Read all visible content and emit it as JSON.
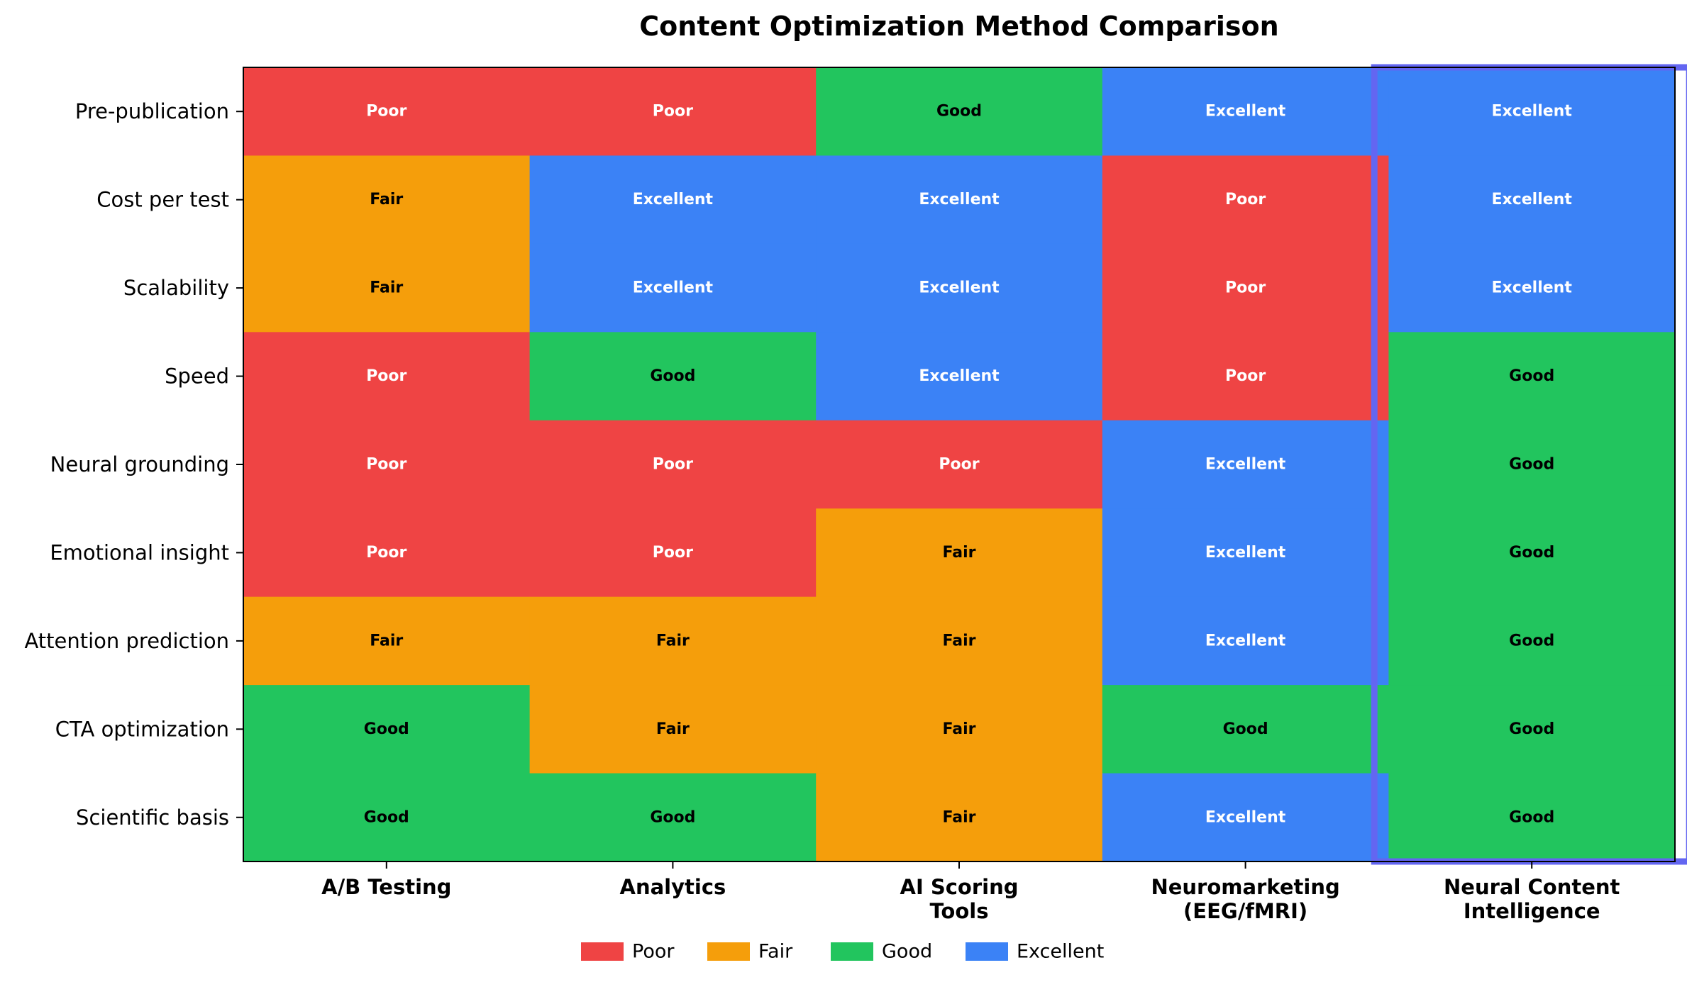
{
  "chart_data": {
    "type": "heatmap",
    "title": "Content Optimization Method Comparison",
    "xlabel": "",
    "ylabel": "",
    "columns": [
      [
        "A/B Testing"
      ],
      [
        "Analytics"
      ],
      [
        "AI Scoring",
        "Tools"
      ],
      [
        "Neuromarketing",
        "(EEG/fMRI)"
      ],
      [
        "Neural Content",
        "Intelligence"
      ]
    ],
    "rows": [
      "Pre-publication",
      "Cost per test",
      "Scalability",
      "Speed",
      "Neural grounding",
      "Emotional insight",
      "Attention prediction",
      "CTA optimization",
      "Scientific basis"
    ],
    "ratings": [
      [
        "Poor",
        "Poor",
        "Good",
        "Excellent",
        "Excellent"
      ],
      [
        "Fair",
        "Excellent",
        "Excellent",
        "Poor",
        "Excellent"
      ],
      [
        "Fair",
        "Excellent",
        "Excellent",
        "Poor",
        "Excellent"
      ],
      [
        "Poor",
        "Good",
        "Excellent",
        "Poor",
        "Good"
      ],
      [
        "Poor",
        "Poor",
        "Poor",
        "Excellent",
        "Good"
      ],
      [
        "Poor",
        "Poor",
        "Fair",
        "Excellent",
        "Good"
      ],
      [
        "Fair",
        "Fair",
        "Fair",
        "Excellent",
        "Good"
      ],
      [
        "Good",
        "Fair",
        "Fair",
        "Good",
        "Good"
      ],
      [
        "Good",
        "Good",
        "Fair",
        "Excellent",
        "Good"
      ]
    ],
    "levels": [
      "Poor",
      "Fair",
      "Good",
      "Excellent"
    ],
    "level_colors": {
      "Poor": "#ef4444",
      "Fair": "#f59e0b",
      "Good": "#22c55e",
      "Excellent": "#3b82f6"
    },
    "label_colors": {
      "Poor": "#ffffff",
      "Fair": "#000000",
      "Good": "#000000",
      "Excellent": "#ffffff"
    },
    "highlight_column": 4,
    "highlight_color": "#6366f1",
    "legend": [
      "Poor",
      "Fair",
      "Good",
      "Excellent"
    ],
    "legend_position": "bottom-center",
    "grid": false
  }
}
